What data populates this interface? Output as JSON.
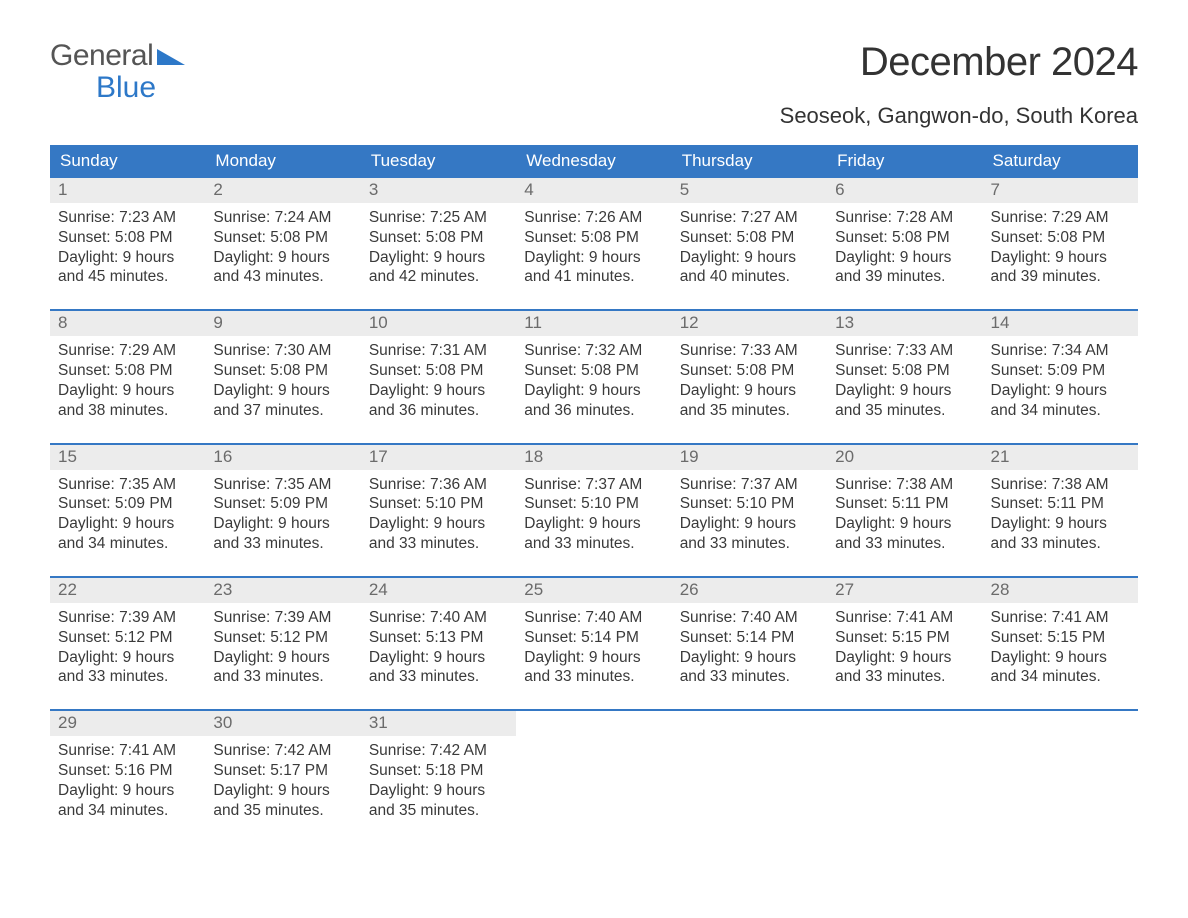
{
  "logo": {
    "word1": "General",
    "word2": "Blue"
  },
  "month_title": "December 2024",
  "location": "Seoseok, Gangwon-do, South Korea",
  "colors": {
    "blue": "#3578c4",
    "logo_blue": "#2d78c8",
    "row_gray": "#ececec",
    "text": "#3a3a3a",
    "muted": "#6b6b6b",
    "bg": "#ffffff"
  },
  "days_of_week": [
    "Sunday",
    "Monday",
    "Tuesday",
    "Wednesday",
    "Thursday",
    "Friday",
    "Saturday"
  ],
  "labels": {
    "sunrise": "Sunrise:",
    "sunset": "Sunset:",
    "daylight_prefix": "Daylight:"
  },
  "weeks": [
    [
      {
        "n": "1",
        "sunrise": "7:23 AM",
        "sunset": "5:08 PM",
        "daylight": "9 hours and 45 minutes."
      },
      {
        "n": "2",
        "sunrise": "7:24 AM",
        "sunset": "5:08 PM",
        "daylight": "9 hours and 43 minutes."
      },
      {
        "n": "3",
        "sunrise": "7:25 AM",
        "sunset": "5:08 PM",
        "daylight": "9 hours and 42 minutes."
      },
      {
        "n": "4",
        "sunrise": "7:26 AM",
        "sunset": "5:08 PM",
        "daylight": "9 hours and 41 minutes."
      },
      {
        "n": "5",
        "sunrise": "7:27 AM",
        "sunset": "5:08 PM",
        "daylight": "9 hours and 40 minutes."
      },
      {
        "n": "6",
        "sunrise": "7:28 AM",
        "sunset": "5:08 PM",
        "daylight": "9 hours and 39 minutes."
      },
      {
        "n": "7",
        "sunrise": "7:29 AM",
        "sunset": "5:08 PM",
        "daylight": "9 hours and 39 minutes."
      }
    ],
    [
      {
        "n": "8",
        "sunrise": "7:29 AM",
        "sunset": "5:08 PM",
        "daylight": "9 hours and 38 minutes."
      },
      {
        "n": "9",
        "sunrise": "7:30 AM",
        "sunset": "5:08 PM",
        "daylight": "9 hours and 37 minutes."
      },
      {
        "n": "10",
        "sunrise": "7:31 AM",
        "sunset": "5:08 PM",
        "daylight": "9 hours and 36 minutes."
      },
      {
        "n": "11",
        "sunrise": "7:32 AM",
        "sunset": "5:08 PM",
        "daylight": "9 hours and 36 minutes."
      },
      {
        "n": "12",
        "sunrise": "7:33 AM",
        "sunset": "5:08 PM",
        "daylight": "9 hours and 35 minutes."
      },
      {
        "n": "13",
        "sunrise": "7:33 AM",
        "sunset": "5:08 PM",
        "daylight": "9 hours and 35 minutes."
      },
      {
        "n": "14",
        "sunrise": "7:34 AM",
        "sunset": "5:09 PM",
        "daylight": "9 hours and 34 minutes."
      }
    ],
    [
      {
        "n": "15",
        "sunrise": "7:35 AM",
        "sunset": "5:09 PM",
        "daylight": "9 hours and 34 minutes."
      },
      {
        "n": "16",
        "sunrise": "7:35 AM",
        "sunset": "5:09 PM",
        "daylight": "9 hours and 33 minutes."
      },
      {
        "n": "17",
        "sunrise": "7:36 AM",
        "sunset": "5:10 PM",
        "daylight": "9 hours and 33 minutes."
      },
      {
        "n": "18",
        "sunrise": "7:37 AM",
        "sunset": "5:10 PM",
        "daylight": "9 hours and 33 minutes."
      },
      {
        "n": "19",
        "sunrise": "7:37 AM",
        "sunset": "5:10 PM",
        "daylight": "9 hours and 33 minutes."
      },
      {
        "n": "20",
        "sunrise": "7:38 AM",
        "sunset": "5:11 PM",
        "daylight": "9 hours and 33 minutes."
      },
      {
        "n": "21",
        "sunrise": "7:38 AM",
        "sunset": "5:11 PM",
        "daylight": "9 hours and 33 minutes."
      }
    ],
    [
      {
        "n": "22",
        "sunrise": "7:39 AM",
        "sunset": "5:12 PM",
        "daylight": "9 hours and 33 minutes."
      },
      {
        "n": "23",
        "sunrise": "7:39 AM",
        "sunset": "5:12 PM",
        "daylight": "9 hours and 33 minutes."
      },
      {
        "n": "24",
        "sunrise": "7:40 AM",
        "sunset": "5:13 PM",
        "daylight": "9 hours and 33 minutes."
      },
      {
        "n": "25",
        "sunrise": "7:40 AM",
        "sunset": "5:14 PM",
        "daylight": "9 hours and 33 minutes."
      },
      {
        "n": "26",
        "sunrise": "7:40 AM",
        "sunset": "5:14 PM",
        "daylight": "9 hours and 33 minutes."
      },
      {
        "n": "27",
        "sunrise": "7:41 AM",
        "sunset": "5:15 PM",
        "daylight": "9 hours and 33 minutes."
      },
      {
        "n": "28",
        "sunrise": "7:41 AM",
        "sunset": "5:15 PM",
        "daylight": "9 hours and 34 minutes."
      }
    ],
    [
      {
        "n": "29",
        "sunrise": "7:41 AM",
        "sunset": "5:16 PM",
        "daylight": "9 hours and 34 minutes."
      },
      {
        "n": "30",
        "sunrise": "7:42 AM",
        "sunset": "5:17 PM",
        "daylight": "9 hours and 35 minutes."
      },
      {
        "n": "31",
        "sunrise": "7:42 AM",
        "sunset": "5:18 PM",
        "daylight": "9 hours and 35 minutes."
      },
      null,
      null,
      null,
      null
    ]
  ]
}
